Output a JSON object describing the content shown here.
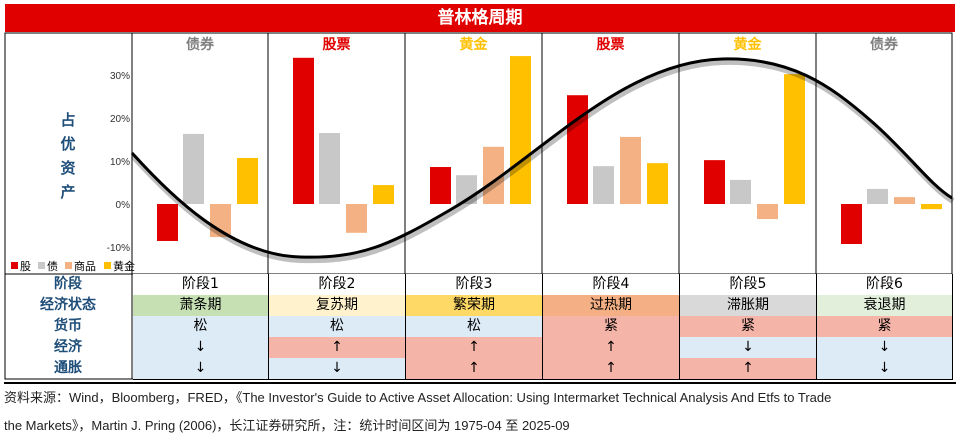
{
  "title": "普林格周期",
  "y_axis_label": "占优资产",
  "columns": [
    {
      "dominant": "债券",
      "color": "#808080",
      "stage": "阶段1",
      "state": "萧条期",
      "state_color": "#c6e0b4",
      "money": "松",
      "economy": "↓",
      "inflation": "↓"
    },
    {
      "dominant": "股票",
      "color": "#e00000",
      "stage": "阶段2",
      "state": "复苏期",
      "state_color": "#fff2cc",
      "money": "松",
      "economy": "↑",
      "inflation": "↓"
    },
    {
      "dominant": "黄金",
      "color": "#ffc000",
      "stage": "阶段3",
      "state": "繁荣期",
      "state_color": "#ffd966",
      "money": "松",
      "economy": "↑",
      "inflation": "↑"
    },
    {
      "dominant": "股票",
      "color": "#e00000",
      "stage": "阶段4",
      "state": "过热期",
      "state_color": "#f4b084",
      "money": "紧",
      "economy": "↑",
      "inflation": "↑"
    },
    {
      "dominant": "黄金",
      "color": "#ffc000",
      "stage": "阶段5",
      "state": "滞胀期",
      "state_color": "#d9d9d9",
      "money": "紧",
      "economy": "↓",
      "inflation": "↑"
    },
    {
      "dominant": "债券",
      "color": "#808080",
      "stage": "阶段6",
      "state": "衰退期",
      "state_color": "#e2efda",
      "money": "紧",
      "economy": "↓",
      "inflation": "↓"
    }
  ],
  "row_labels": {
    "stage": "阶段",
    "state": "经济状态",
    "money": "货币",
    "economy": "经济",
    "inflation": "通胀"
  },
  "colors": {
    "loose": "#ddebf7",
    "up_tight": "#f4b4a8"
  },
  "chart_data": {
    "type": "bar",
    "title": "普林格周期",
    "categories": [
      "阶段1",
      "阶段2",
      "阶段3",
      "阶段4",
      "阶段5",
      "阶段6"
    ],
    "ylim": [
      -0.12,
      0.38
    ],
    "yticks": [
      {
        "v": 0.3,
        "label": "30%"
      },
      {
        "v": 0.2,
        "label": "20%"
      },
      {
        "v": 0.1,
        "label": "10%"
      },
      {
        "v": 0,
        "label": "0%"
      },
      {
        "v": -0.1,
        "label": "-10%"
      }
    ],
    "series": [
      {
        "name": "股",
        "color": "#e00000",
        "values": [
          -0.086,
          0.34,
          0.086,
          0.253,
          0.102,
          -0.093
        ]
      },
      {
        "name": "债",
        "color": "#c8c8c8",
        "values": [
          0.163,
          0.165,
          0.067,
          0.088,
          0.056,
          0.035
        ]
      },
      {
        "name": "商品",
        "color": "#f4b183",
        "values": [
          -0.077,
          -0.067,
          0.133,
          0.156,
          -0.035,
          0.016
        ]
      },
      {
        "name": "黄金",
        "color": "#ffc000",
        "values": [
          0.107,
          0.044,
          0.344,
          0.095,
          0.302,
          -0.012
        ]
      }
    ],
    "legend": "bottom-left"
  },
  "footer": [
    "资料来源：Wind，Bloomberg，FRED，《The Investor's Guide to Active Asset Allocation: Using Intermarket Technical Analysis And Etfs to Trade",
    "the Markets》，Martin J. Pring (2006)，长江证券研究所，注：统计时间区间为 1975-04 至 2025-09"
  ]
}
